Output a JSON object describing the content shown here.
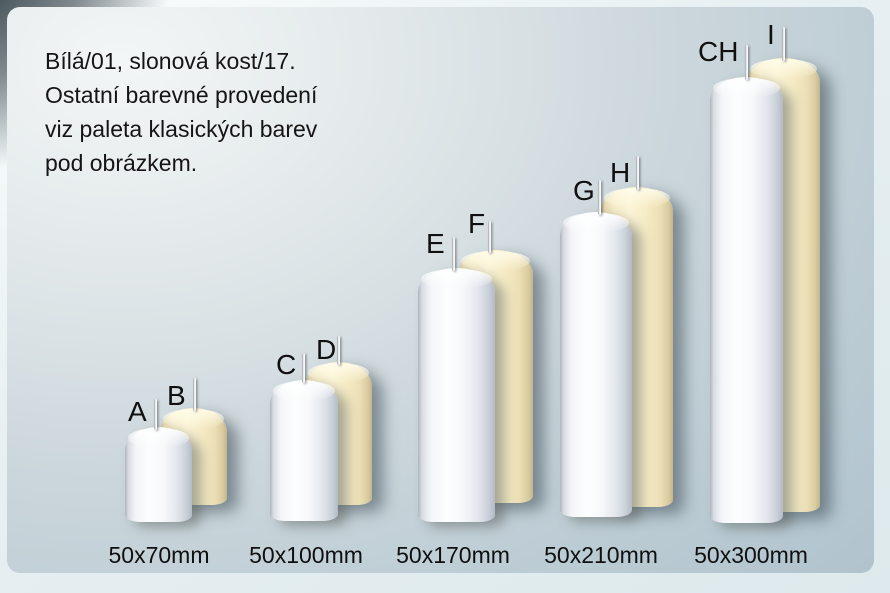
{
  "note": {
    "text": "Bílá/01, slonová kost/17.\nOstatní barevné provedení\nviz paleta klasických barev\npod obrázkem."
  },
  "pairs": [
    {
      "front_label": "A",
      "back_label": "B",
      "size": "50x70mm"
    },
    {
      "front_label": "C",
      "back_label": "D",
      "size": "50x100mm"
    },
    {
      "front_label": "E",
      "back_label": "F",
      "size": "50x170mm"
    },
    {
      "front_label": "G",
      "back_label": "H",
      "size": "50x210mm"
    },
    {
      "front_label": "CH",
      "back_label": "I",
      "size": "50x300mm"
    }
  ],
  "colors": {
    "white_candle": "#fdfefe",
    "ivory_candle": "#f8eecb",
    "panel_light": "#f3f6f6",
    "panel_dark": "#afc2cc",
    "text": "#151515"
  }
}
